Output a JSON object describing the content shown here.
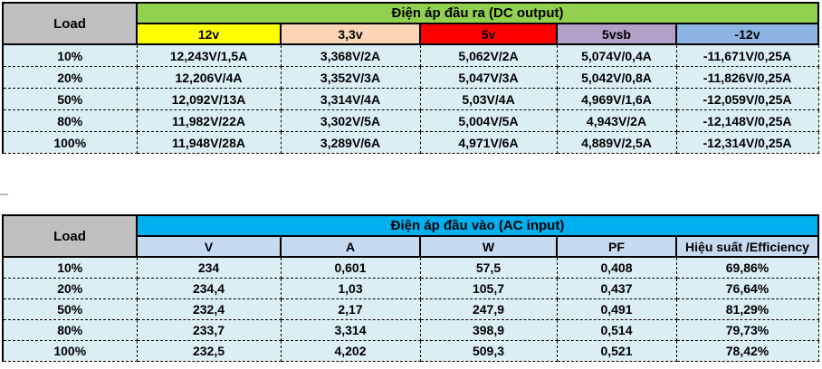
{
  "chart_data": [
    {
      "type": "table",
      "title": "Điện áp đầu ra (DC output)",
      "corner_label": "Load",
      "columns": [
        "12v",
        "3,3v",
        "5v",
        "5vsb",
        "-12v"
      ],
      "column_colors": [
        "#FFFF00",
        "#FBD5B5",
        "#FF0000",
        "#B1A0C7",
        "#8DB4E2"
      ],
      "title_color": "#92D050",
      "corner_color": "#BFBFBF",
      "row_color": "#DAEEF3",
      "rows": [
        {
          "load": "10%",
          "values": [
            "12,243V/1,5A",
            "3,368V/2A",
            "5,062V/2A",
            "5,074V/0,4A",
            "-11,671V/0,25A"
          ]
        },
        {
          "load": "20%",
          "values": [
            "12,206V/4A",
            "3,352V/3A",
            "5,047V/3A",
            "5,042V/0,8A",
            "-11,826V/0,25A"
          ]
        },
        {
          "load": "50%",
          "values": [
            "12,092V/13A",
            "3,314V/4A",
            "5,03V/4A",
            "4,969V/1,6A",
            "-12,059V/0,25A"
          ]
        },
        {
          "load": "80%",
          "values": [
            "11,982V/22A",
            "3,302V/5A",
            "5,004V/5A",
            "4,943V/2A",
            "-12,148V/0,25A"
          ]
        },
        {
          "load": "100%",
          "values": [
            "11,948V/28A",
            "3,289V/6A",
            "4,971V/6A",
            "4,889V/2,5A",
            "-12,314V/0,25A"
          ]
        }
      ]
    },
    {
      "type": "table",
      "title": "Điện áp đầu vào (AC input)",
      "corner_label": "Load",
      "columns": [
        "V",
        "A",
        "W",
        "PF",
        "Hiệu suất /Efficiency"
      ],
      "header_color": "#C5D9F1",
      "title_color": "#00B0F0",
      "corner_color": "#BFBFBF",
      "row_color": "#DAEEF3",
      "rows": [
        {
          "load": "10%",
          "values": [
            "234",
            "0,601",
            "57,5",
            "0,408",
            "69,86%"
          ]
        },
        {
          "load": "20%",
          "values": [
            "234,4",
            "1,03",
            "105,7",
            "0,437",
            "76,64%"
          ]
        },
        {
          "load": "50%",
          "values": [
            "232,4",
            "2,17",
            "247,9",
            "0,491",
            "81,29%"
          ]
        },
        {
          "load": "80%",
          "values": [
            "233,7",
            "3,314",
            "398,9",
            "0,514",
            "79,73%"
          ]
        },
        {
          "load": "100%",
          "values": [
            "232,5",
            "4,202",
            "509,3",
            "0,521",
            "78,42%"
          ]
        }
      ]
    }
  ]
}
